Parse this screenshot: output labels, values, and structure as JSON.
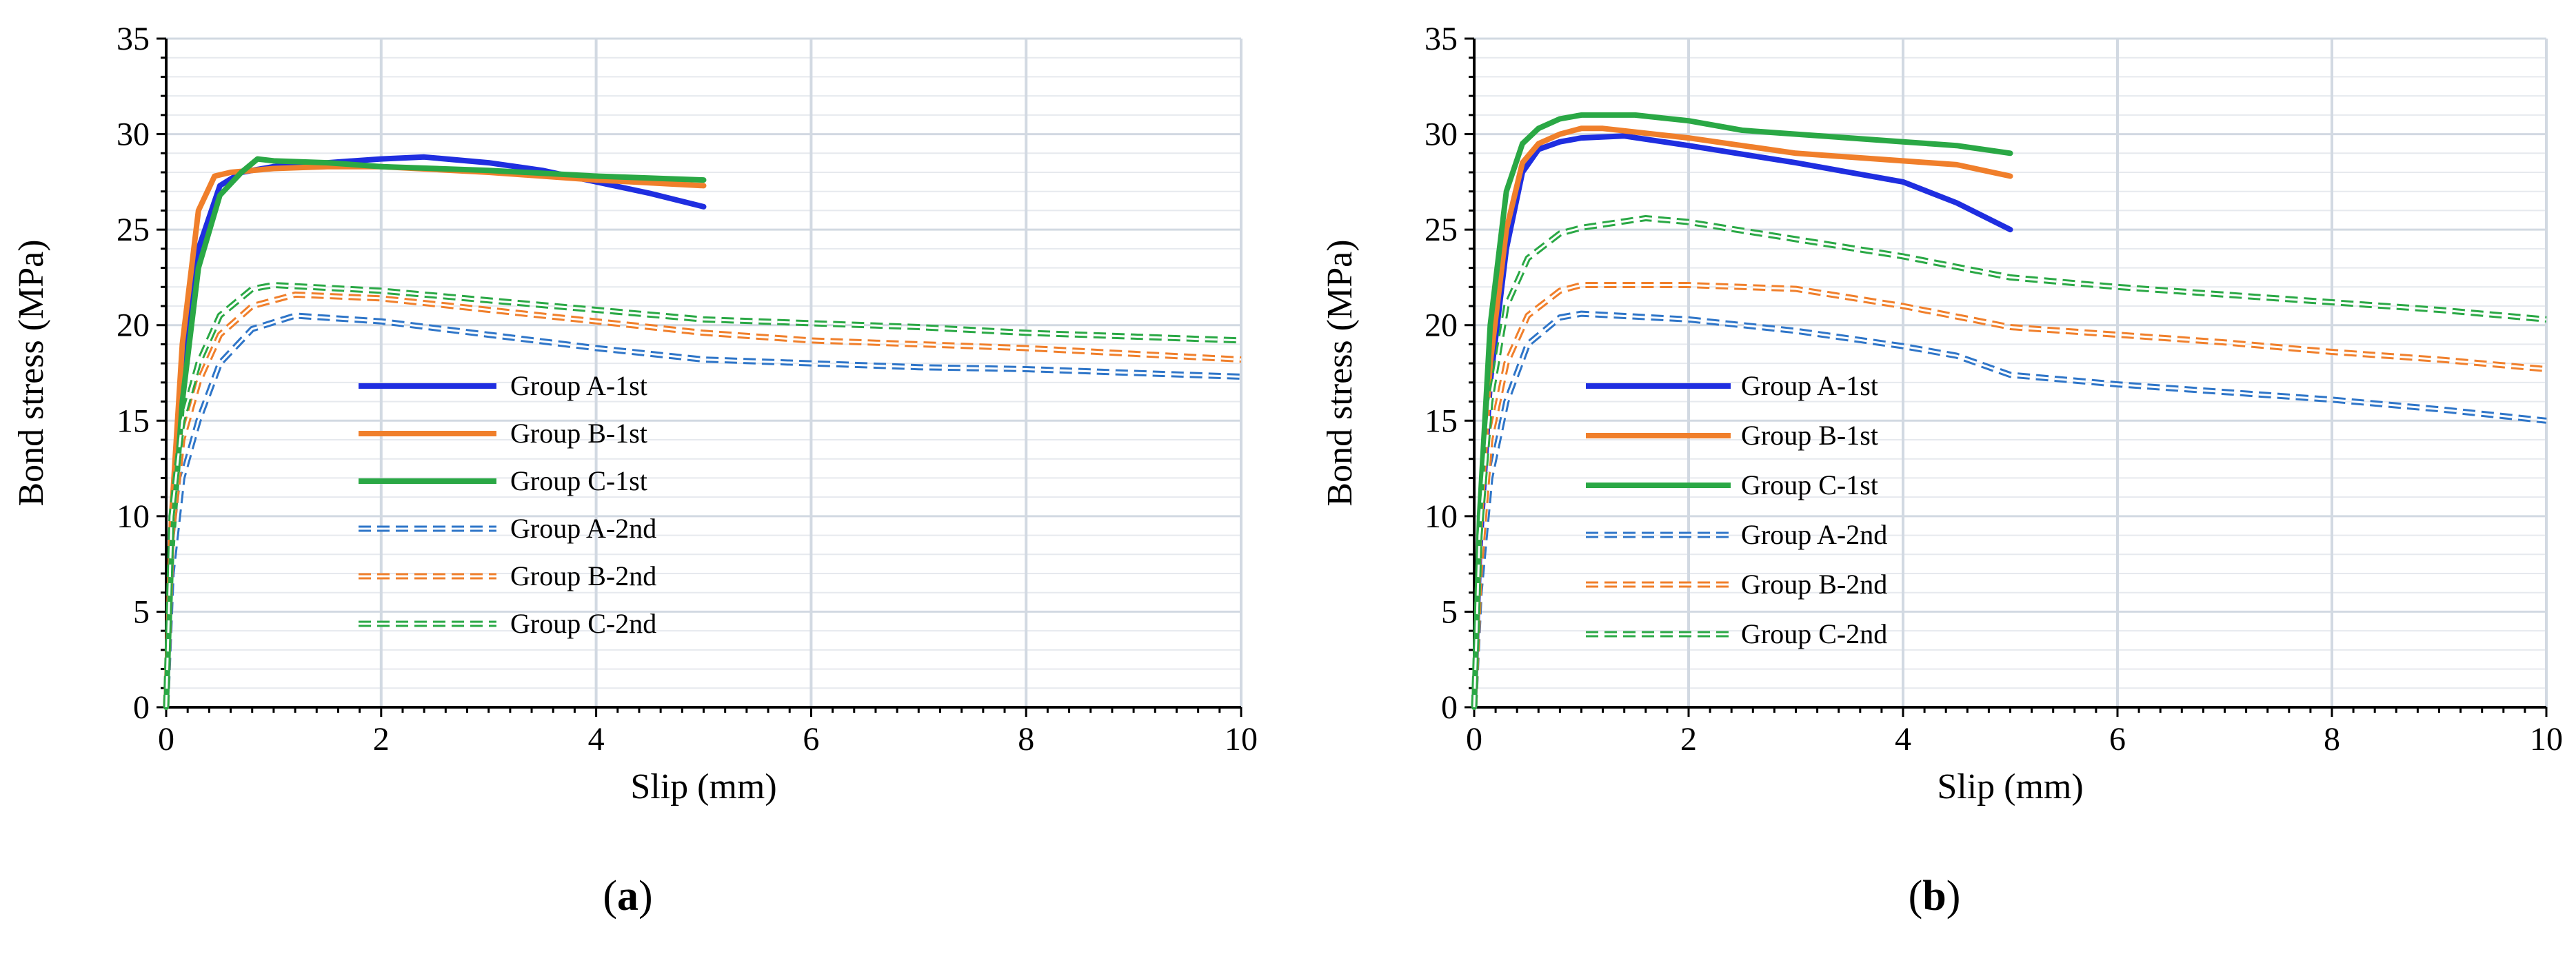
{
  "chart_data": [
    {
      "type": "line",
      "panel_letter": "a",
      "xlabel": "Slip (mm)",
      "ylabel": "Bond stress (MPa)",
      "xlim": [
        0,
        10
      ],
      "ylim": [
        0,
        35
      ],
      "xticks": [
        0,
        2,
        4,
        6,
        8,
        10
      ],
      "yticks": [
        0,
        5,
        10,
        15,
        20,
        25,
        30,
        35
      ],
      "legend_position": "center-left",
      "series": [
        {
          "name": "Group A-1st",
          "color": "#1f2ee0",
          "style": "solid",
          "x": [
            0,
            0.05,
            0.15,
            0.3,
            0.5,
            0.7,
            1.0,
            1.5,
            2.0,
            2.4,
            3.0,
            3.5,
            4.0,
            4.5,
            5.0
          ],
          "y": [
            0,
            9,
            17,
            24,
            27.3,
            28.0,
            28.3,
            28.5,
            28.7,
            28.8,
            28.5,
            28.1,
            27.5,
            26.9,
            26.2
          ]
        },
        {
          "name": "Group B-1st",
          "color": "#f07f2b",
          "style": "solid",
          "x": [
            0,
            0.05,
            0.15,
            0.3,
            0.45,
            0.6,
            1.0,
            1.5,
            2.0,
            3.0,
            4.0,
            5.0
          ],
          "y": [
            0,
            10,
            19,
            26,
            27.8,
            28.0,
            28.2,
            28.3,
            28.3,
            28.0,
            27.6,
            27.3
          ]
        },
        {
          "name": "Group C-1st",
          "color": "#2aa845",
          "style": "solid",
          "x": [
            0,
            0.05,
            0.15,
            0.3,
            0.5,
            0.7,
            0.85,
            1.0,
            1.5,
            2.0,
            3.0,
            4.0,
            5.0
          ],
          "y": [
            0,
            8,
            16,
            23,
            26.8,
            28.0,
            28.7,
            28.6,
            28.5,
            28.3,
            28.1,
            27.8,
            27.6
          ]
        },
        {
          "name": "Group A-2nd",
          "color": "#2e75c8",
          "style": "dashed",
          "x": [
            0,
            0.05,
            0.15,
            0.3,
            0.5,
            0.8,
            1.2,
            2.0,
            3.0,
            4.0,
            5.0,
            6.0,
            7.0,
            8.0,
            9.0,
            10.0
          ],
          "y": [
            0,
            7,
            12,
            15,
            18,
            19.8,
            20.5,
            20.2,
            19.5,
            18.8,
            18.2,
            18.0,
            17.8,
            17.7,
            17.5,
            17.3
          ]
        },
        {
          "name": "Group B-2nd",
          "color": "#f07f2b",
          "style": "dashed",
          "x": [
            0,
            0.05,
            0.15,
            0.3,
            0.5,
            0.8,
            1.2,
            2.0,
            3.0,
            4.0,
            5.0,
            6.0,
            7.0,
            8.0,
            9.0,
            10.0
          ],
          "y": [
            0,
            9,
            14,
            17,
            19.5,
            21.0,
            21.6,
            21.4,
            20.8,
            20.2,
            19.6,
            19.2,
            19.0,
            18.8,
            18.5,
            18.2
          ]
        },
        {
          "name": "Group C-2nd",
          "color": "#2aa845",
          "style": "dashed",
          "x": [
            0,
            0.05,
            0.15,
            0.3,
            0.5,
            0.8,
            1.0,
            2.0,
            3.0,
            4.0,
            5.0,
            6.0,
            7.0,
            8.0,
            9.0,
            10.0
          ],
          "y": [
            0,
            10,
            15,
            18,
            20.5,
            21.9,
            22.1,
            21.8,
            21.3,
            20.8,
            20.3,
            20.1,
            19.9,
            19.6,
            19.4,
            19.2
          ]
        }
      ]
    },
    {
      "type": "line",
      "panel_letter": "b",
      "xlabel": "Slip (mm)",
      "ylabel": "Bond stress (MPa)",
      "xlim": [
        0,
        10
      ],
      "ylim": [
        0,
        35
      ],
      "xticks": [
        0,
        2,
        4,
        6,
        8,
        10
      ],
      "yticks": [
        0,
        5,
        10,
        15,
        20,
        25,
        30,
        35
      ],
      "legend_position": "center-left",
      "series": [
        {
          "name": "Group A-1st",
          "color": "#1f2ee0",
          "style": "solid",
          "x": [
            0,
            0.05,
            0.15,
            0.3,
            0.45,
            0.6,
            0.8,
            1.0,
            1.4,
            2.0,
            3.0,
            4.0,
            4.5,
            5.0
          ],
          "y": [
            0,
            8,
            17,
            24,
            28.0,
            29.2,
            29.6,
            29.8,
            29.9,
            29.4,
            28.5,
            27.5,
            26.4,
            25.0
          ]
        },
        {
          "name": "Group B-1st",
          "color": "#f07f2b",
          "style": "solid",
          "x": [
            0,
            0.05,
            0.15,
            0.3,
            0.45,
            0.6,
            0.8,
            1.0,
            1.2,
            2.0,
            3.0,
            4.0,
            4.5,
            5.0
          ],
          "y": [
            0,
            9,
            18,
            25,
            28.5,
            29.5,
            30.0,
            30.3,
            30.3,
            29.8,
            29.0,
            28.6,
            28.4,
            27.8
          ]
        },
        {
          "name": "Group C-1st",
          "color": "#2aa845",
          "style": "solid",
          "x": [
            0,
            0.05,
            0.15,
            0.3,
            0.45,
            0.6,
            0.8,
            1.0,
            1.5,
            2.0,
            2.5,
            3.0,
            4.0,
            4.5,
            5.0
          ],
          "y": [
            0,
            10,
            20,
            27,
            29.5,
            30.3,
            30.8,
            31.0,
            31.0,
            30.7,
            30.2,
            30.0,
            29.6,
            29.4,
            29.0
          ]
        },
        {
          "name": "Group A-2nd",
          "color": "#2e75c8",
          "style": "dashed",
          "x": [
            0,
            0.05,
            0.15,
            0.3,
            0.5,
            0.8,
            1.0,
            2.0,
            3.0,
            4.0,
            4.5,
            5.0,
            6.0,
            7.0,
            8.0,
            9.0,
            10.0
          ],
          "y": [
            0,
            6,
            12,
            16,
            19,
            20.4,
            20.6,
            20.3,
            19.7,
            18.9,
            18.4,
            17.4,
            16.9,
            16.5,
            16.1,
            15.6,
            15.0
          ]
        },
        {
          "name": "Group B-2nd",
          "color": "#f07f2b",
          "style": "dashed",
          "x": [
            0,
            0.05,
            0.15,
            0.3,
            0.5,
            0.8,
            1.0,
            2.0,
            3.0,
            4.0,
            5.0,
            6.0,
            7.0,
            8.0,
            9.0,
            10.0
          ],
          "y": [
            0,
            7,
            14,
            18,
            20.5,
            21.8,
            22.1,
            22.1,
            21.9,
            21.0,
            19.9,
            19.5,
            19.1,
            18.6,
            18.2,
            17.7
          ]
        },
        {
          "name": "Group C-2nd",
          "color": "#2aa845",
          "style": "dashed",
          "x": [
            0,
            0.05,
            0.15,
            0.3,
            0.5,
            0.8,
            1.0,
            1.6,
            2.0,
            3.0,
            4.0,
            5.0,
            6.0,
            7.0,
            8.0,
            9.0,
            10.0
          ],
          "y": [
            0,
            9,
            16,
            21,
            23.5,
            24.8,
            25.1,
            25.6,
            25.4,
            24.5,
            23.6,
            22.5,
            22.0,
            21.6,
            21.2,
            20.8,
            20.3
          ]
        }
      ]
    }
  ]
}
